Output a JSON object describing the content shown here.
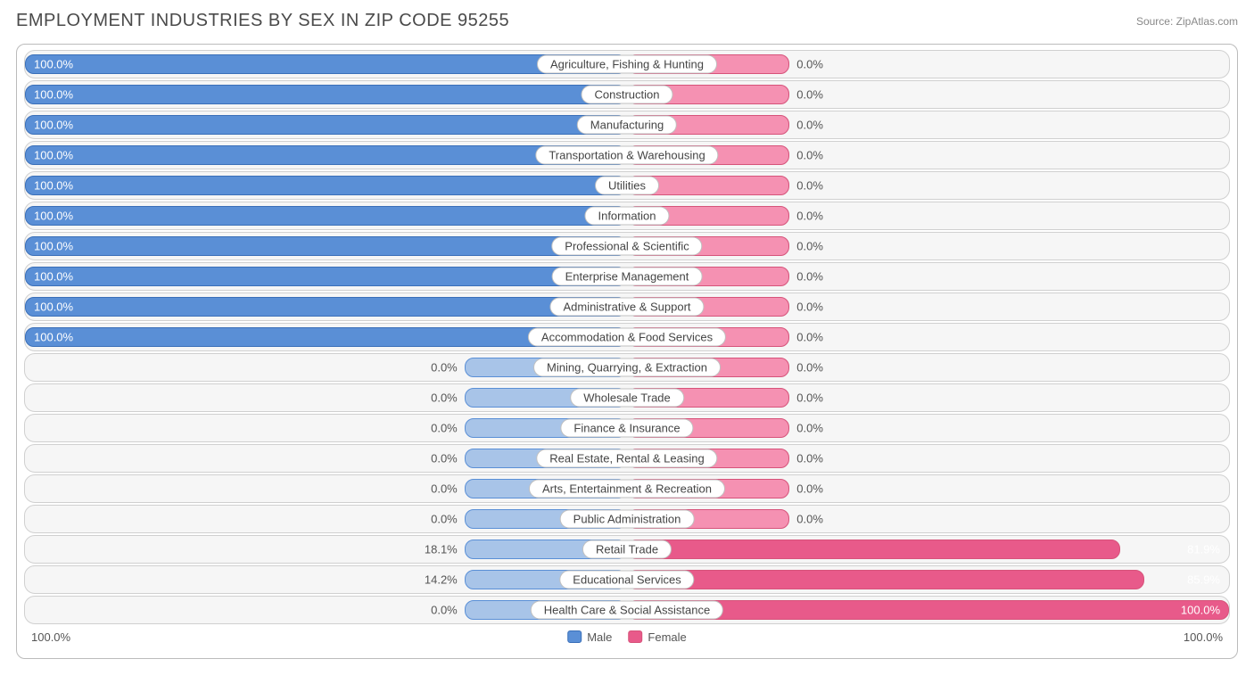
{
  "title": "EMPLOYMENT INDUSTRIES BY SEX IN ZIP CODE 95255",
  "source": "Source: ZipAtlas.com",
  "colors": {
    "male_fill": "#5a8fd6",
    "male_border": "#3a6fb8",
    "male_faded": "#a8c4e8",
    "female_fill": "#f591b2",
    "female_border": "#d6537a",
    "female_strong": "#e85a8a",
    "row_bg": "#f6f6f6",
    "row_border": "#d0d0d0",
    "text": "#555"
  },
  "chart": {
    "type": "diverging-bar",
    "min_bar_pct": 27,
    "rows": [
      {
        "label": "Agriculture, Fishing & Hunting",
        "male": 100.0,
        "female": 0.0,
        "male_full": true
      },
      {
        "label": "Construction",
        "male": 100.0,
        "female": 0.0,
        "male_full": true
      },
      {
        "label": "Manufacturing",
        "male": 100.0,
        "female": 0.0,
        "male_full": true
      },
      {
        "label": "Transportation & Warehousing",
        "male": 100.0,
        "female": 0.0,
        "male_full": true
      },
      {
        "label": "Utilities",
        "male": 100.0,
        "female": 0.0,
        "male_full": true
      },
      {
        "label": "Information",
        "male": 100.0,
        "female": 0.0,
        "male_full": true
      },
      {
        "label": "Professional & Scientific",
        "male": 100.0,
        "female": 0.0,
        "male_full": true
      },
      {
        "label": "Enterprise Management",
        "male": 100.0,
        "female": 0.0,
        "male_full": true
      },
      {
        "label": "Administrative & Support",
        "male": 100.0,
        "female": 0.0,
        "male_full": true
      },
      {
        "label": "Accommodation & Food Services",
        "male": 100.0,
        "female": 0.0,
        "male_full": true
      },
      {
        "label": "Mining, Quarrying, & Extraction",
        "male": 0.0,
        "female": 0.0,
        "male_full": false
      },
      {
        "label": "Wholesale Trade",
        "male": 0.0,
        "female": 0.0,
        "male_full": false
      },
      {
        "label": "Finance & Insurance",
        "male": 0.0,
        "female": 0.0,
        "male_full": false
      },
      {
        "label": "Real Estate, Rental & Leasing",
        "male": 0.0,
        "female": 0.0,
        "male_full": false
      },
      {
        "label": "Arts, Entertainment & Recreation",
        "male": 0.0,
        "female": 0.0,
        "male_full": false
      },
      {
        "label": "Public Administration",
        "male": 0.0,
        "female": 0.0,
        "male_full": false
      },
      {
        "label": "Retail Trade",
        "male": 18.1,
        "female": 81.9,
        "male_full": false
      },
      {
        "label": "Educational Services",
        "male": 14.2,
        "female": 85.9,
        "male_full": false
      },
      {
        "label": "Health Care & Social Assistance",
        "male": 0.0,
        "female": 100.0,
        "male_full": false
      }
    ]
  },
  "legend": {
    "male": "Male",
    "female": "Female",
    "axis_left": "100.0%",
    "axis_right": "100.0%"
  }
}
